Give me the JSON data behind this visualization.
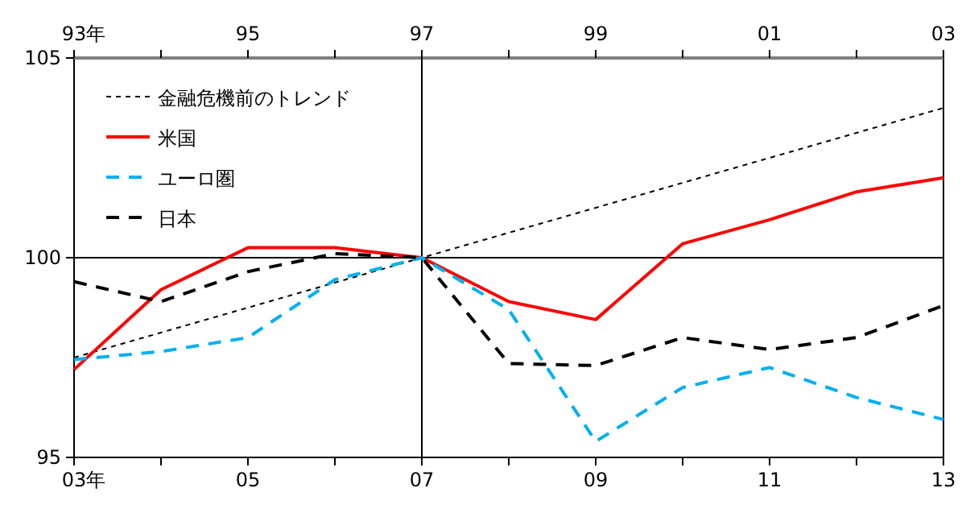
{
  "chart_data": {
    "type": "line",
    "x": [
      2003,
      2004,
      2005,
      2006,
      2007,
      2008,
      2009,
      2010,
      2011,
      2012,
      2013
    ],
    "series": [
      {
        "name": "金融危機前のトレンド",
        "color": "#000000",
        "line_style": "dotted",
        "x": [
          2003,
          2007,
          2013
        ],
        "values": [
          97.5,
          100,
          103.75
        ]
      },
      {
        "name": "米国",
        "color": "#ff0000",
        "line_style": "solid",
        "values": [
          97.2,
          99.2,
          100.25,
          100.25,
          100,
          98.9,
          98.45,
          100.35,
          100.95,
          101.65,
          102
        ]
      },
      {
        "name": "ユーロ圏",
        "color": "#00b0f0",
        "line_style": "dashed",
        "values": [
          97.45,
          97.65,
          98,
          99.45,
          100,
          98.7,
          95.4,
          96.75,
          97.25,
          96.5,
          95.95
        ]
      },
      {
        "name": "日本",
        "color": "#000000",
        "line_style": "dashed",
        "values": [
          99.4,
          98.9,
          99.65,
          100.1,
          100,
          97.35,
          97.3,
          98,
          97.7,
          98,
          98.8
        ]
      }
    ],
    "xlim": [
      2003,
      2013
    ],
    "xticks": [
      {
        "value": 2003,
        "label": "03"
      },
      {
        "value": 2004,
        "label": null
      },
      {
        "value": 2005,
        "label": "05"
      },
      {
        "value": 2006,
        "label": null
      },
      {
        "value": 2007,
        "label": "07"
      },
      {
        "value": 2008,
        "label": null
      },
      {
        "value": 2009,
        "label": "09"
      },
      {
        "value": 2010,
        "label": null
      },
      {
        "value": 2011,
        "label": "11"
      },
      {
        "value": 2012,
        "label": null
      },
      {
        "value": 2013,
        "label": "13"
      }
    ],
    "x2lim": [
      1993,
      2003
    ],
    "x2ticks": [
      {
        "value": 1993,
        "label": "93"
      },
      {
        "value": 1994,
        "label": null
      },
      {
        "value": 1995,
        "label": "95"
      },
      {
        "value": 1996,
        "label": null
      },
      {
        "value": 1997,
        "label": "97"
      },
      {
        "value": 1998,
        "label": null
      },
      {
        "value": 1999,
        "label": "99"
      },
      {
        "value": 2000,
        "label": null
      },
      {
        "value": 2001,
        "label": "01"
      },
      {
        "value": 2002,
        "label": null
      },
      {
        "value": 2003,
        "label": "03"
      }
    ],
    "ylim": [
      95,
      105
    ],
    "yticks": [
      95,
      100,
      105
    ],
    "ref_lines": [
      {
        "axis": "y",
        "value": 100,
        "color": "#000000"
      },
      {
        "axis": "x",
        "value": 2007,
        "color": "#000000"
      }
    ],
    "legend": "top left",
    "marker": "none",
    "annotations": [
      "年",
      "年"
    ]
  }
}
